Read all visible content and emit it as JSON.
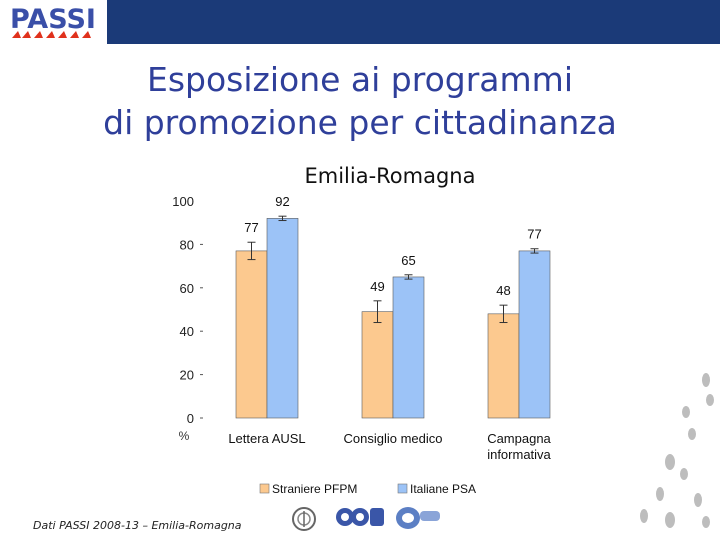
{
  "header": {
    "logo_text": "PASSI",
    "title_line1": "Esposizione ai programmi",
    "title_line2": "di promozione per cittadinanza",
    "subtitle": "Emilia-Romagna"
  },
  "chart_data": {
    "type": "bar",
    "categories": [
      "Lettera AUSL",
      "Consiglio medico",
      "Campagna informativa"
    ],
    "category_lines": [
      [
        "Lettera AUSL"
      ],
      [
        "Consiglio medico"
      ],
      [
        "Campagna",
        "informativa"
      ]
    ],
    "series": [
      {
        "name": "Straniere PFPM",
        "values": [
          77,
          49,
          48
        ],
        "color": "#fcc98f"
      },
      {
        "name": "Italiane PSA",
        "values": [
          92,
          65,
          77
        ],
        "color": "#9cc3f7"
      }
    ],
    "error_bars": [
      [
        4,
        5,
        4
      ],
      [
        1,
        1,
        1
      ]
    ],
    "ylim": [
      0,
      100
    ],
    "yticks": [
      0,
      20,
      40,
      60,
      80,
      100
    ],
    "ylabel": "%",
    "legend_position": "bottom",
    "grid": false
  },
  "footer": {
    "source_text": "Dati PASSI 2008-13 – Emilia-Romagna",
    "partner_logos": [
      "iss-seal-icon",
      "ccm-logo-icon",
      "gruppo-logo-icon"
    ]
  },
  "decor": {
    "footprints": "footprints-icon"
  }
}
